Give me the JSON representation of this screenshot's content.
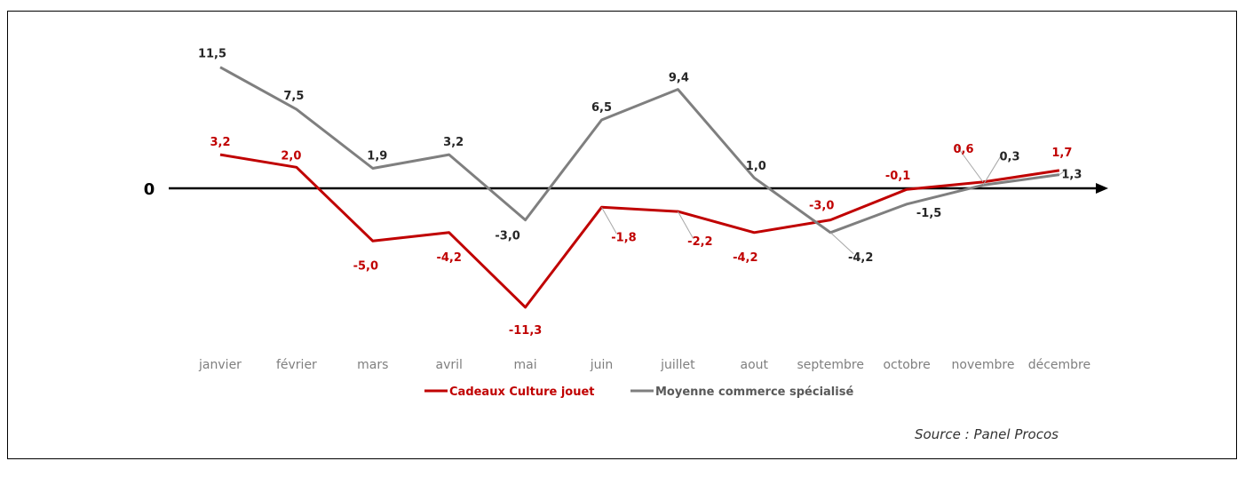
{
  "chart_data": {
    "type": "line",
    "categories": [
      "janvier",
      "février",
      "mars",
      "avril",
      "mai",
      "juin",
      "juillet",
      "aout",
      "septembre",
      "octobre",
      "novembre",
      "décembre"
    ],
    "series": [
      {
        "name": "Cadeaux Culture jouet",
        "color": "#c00000",
        "values": [
          3.2,
          2.0,
          -5.0,
          -4.2,
          -11.3,
          -1.8,
          -2.2,
          -4.2,
          -3.0,
          -0.1,
          0.6,
          1.7
        ],
        "labels": [
          "3,2",
          "2,0",
          "-5,0",
          "-4,2",
          "-11,3",
          "-1,8",
          "-2,2",
          "-4,2",
          "-3,0",
          "-0,1",
          "0,6",
          "1,7"
        ]
      },
      {
        "name": "Moyenne commerce spécialisé",
        "color": "#7f7f7f",
        "values": [
          11.5,
          7.5,
          1.9,
          3.2,
          -3.0,
          6.5,
          9.4,
          1.0,
          -4.2,
          -1.5,
          0.3,
          1.3
        ],
        "labels": [
          "11,5",
          "7,5",
          "1,9",
          "3,2",
          "-3,0",
          "6,5",
          "9,4",
          "1,0",
          "-4,2",
          "-1,5",
          "0,3",
          "1,3"
        ]
      }
    ],
    "zero_label": "0",
    "title": "",
    "xlabel": "",
    "ylabel": "",
    "grid": false,
    "legend": "bottom-center"
  },
  "source": "Source : Panel Procos"
}
